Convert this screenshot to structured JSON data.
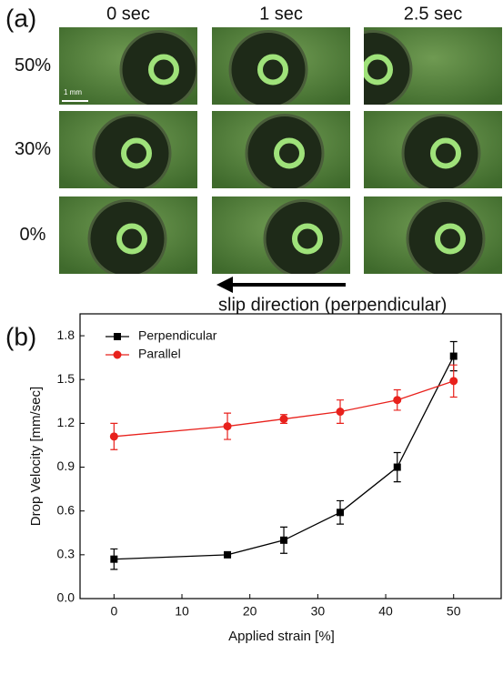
{
  "panel_a": {
    "label": "(a)",
    "columns": [
      "0 sec",
      "1 sec",
      "2.5 sec"
    ],
    "rows": [
      "50%",
      "30%",
      "0%"
    ],
    "scale_bar": "1 mm",
    "arrow_label": "slip direction (perpendicular)"
  },
  "chart_data": {
    "type": "line",
    "label": "(b)",
    "x_label": "Applied strain [%]",
    "y_label": "Drop Velocity [mm/sec]",
    "xlim": [
      -5,
      57
    ],
    "xticks": [
      0,
      10,
      20,
      30,
      40,
      50
    ],
    "ylim": [
      0,
      1.95
    ],
    "yticks": [
      {
        "value": 0,
        "label": "0.0"
      },
      0.3,
      0.6,
      0.9,
      1.2,
      1.5,
      1.8
    ],
    "legend": "upper-left",
    "series": [
      {
        "name": "Perpendicular",
        "color": "#000000",
        "marker": "square",
        "x": [
          0,
          16.7,
          25,
          33.3,
          41.7,
          50
        ],
        "values": [
          0.27,
          0.3,
          0.4,
          0.59,
          0.9,
          1.66
        ],
        "errors": [
          0.07,
          0.01,
          0.09,
          0.08,
          0.1,
          0.1
        ]
      },
      {
        "name": "Parallel",
        "color": "#e8211c",
        "marker": "circle",
        "x": [
          0,
          16.7,
          25,
          33.3,
          41.7,
          50
        ],
        "values": [
          1.11,
          1.18,
          1.23,
          1.28,
          1.36,
          1.49
        ],
        "errors": [
          0.09,
          0.09,
          0.03,
          0.08,
          0.07,
          0.11
        ]
      }
    ]
  }
}
